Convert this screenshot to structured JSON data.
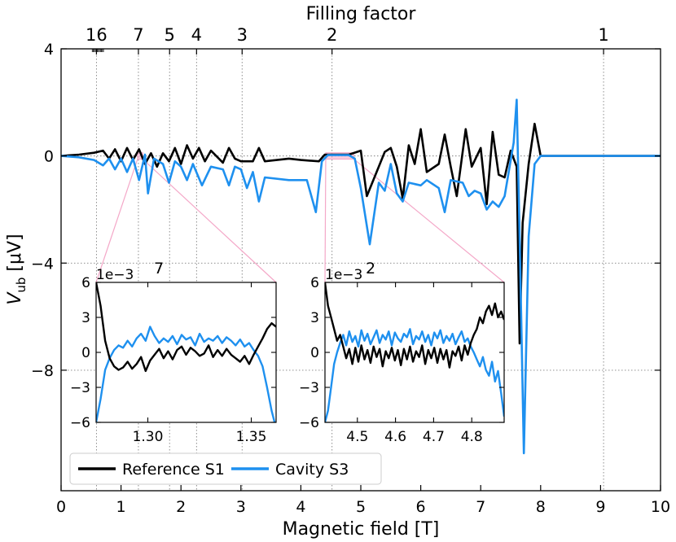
{
  "chart_data": [
    {
      "type": "line",
      "xlabel": "Magnetic field [T]",
      "ylabel": "V",
      "ylabel_sub": "ub",
      "ylabel_unit": " [μV]",
      "xlim": [
        0,
        10
      ],
      "ylim": [
        -12.5,
        4
      ],
      "xticks": [
        0,
        1,
        2,
        3,
        4,
        5,
        6,
        7,
        8,
        9,
        10
      ],
      "yticks": [
        4,
        0,
        -4,
        -8
      ],
      "ytick_labels": [
        "4",
        "0",
        "−4",
        "−8"
      ],
      "top_axis": {
        "label": "Filling factor",
        "ticks": [
          {
            "label": "16",
            "x": 0.59
          },
          {
            "label": "7",
            "x": 1.29
          },
          {
            "label": "5",
            "x": 1.81
          },
          {
            "label": "4",
            "x": 2.26
          },
          {
            "label": "3",
            "x": 3.02
          },
          {
            "label": "2",
            "x": 4.52
          },
          {
            "label": "1",
            "x": 9.05
          }
        ]
      },
      "grid": "dotted at filling-factor fields and y ticks",
      "legend": {
        "position": "lower-left"
      },
      "series": [
        {
          "name": "Reference S1",
          "color": "#000000",
          "points": [
            [
              0,
              0
            ],
            [
              0.3,
              0.05
            ],
            [
              0.55,
              0.12
            ],
            [
              0.7,
              0.2
            ],
            [
              0.8,
              -0.1
            ],
            [
              0.9,
              0.25
            ],
            [
              1.0,
              -0.2
            ],
            [
              1.1,
              0.3
            ],
            [
              1.2,
              -0.15
            ],
            [
              1.3,
              0.25
            ],
            [
              1.4,
              -0.3
            ],
            [
              1.5,
              0.1
            ],
            [
              1.6,
              -0.4
            ],
            [
              1.7,
              0.1
            ],
            [
              1.8,
              -0.2
            ],
            [
              1.9,
              0.3
            ],
            [
              2.0,
              -0.3
            ],
            [
              2.1,
              0.4
            ],
            [
              2.2,
              -0.1
            ],
            [
              2.3,
              0.3
            ],
            [
              2.4,
              -0.2
            ],
            [
              2.5,
              0.2
            ],
            [
              2.7,
              -0.25
            ],
            [
              2.8,
              0.3
            ],
            [
              2.9,
              -0.1
            ],
            [
              3.0,
              -0.2
            ],
            [
              3.2,
              -0.2
            ],
            [
              3.3,
              0.3
            ],
            [
              3.4,
              -0.2
            ],
            [
              3.6,
              -0.15
            ],
            [
              3.8,
              -0.1
            ],
            [
              4.0,
              -0.15
            ],
            [
              4.3,
              -0.2
            ],
            [
              4.4,
              0.05
            ],
            [
              4.8,
              0.05
            ],
            [
              5.0,
              0.2
            ],
            [
              5.1,
              -1.5
            ],
            [
              5.3,
              -0.4
            ],
            [
              5.4,
              0.15
            ],
            [
              5.5,
              0.3
            ],
            [
              5.6,
              -0.4
            ],
            [
              5.7,
              -1.6
            ],
            [
              5.8,
              0.4
            ],
            [
              5.9,
              -0.3
            ],
            [
              6.0,
              1.0
            ],
            [
              6.1,
              -0.6
            ],
            [
              6.3,
              -0.3
            ],
            [
              6.4,
              0.8
            ],
            [
              6.5,
              -0.4
            ],
            [
              6.6,
              -1.5
            ],
            [
              6.75,
              1.0
            ],
            [
              6.85,
              -0.4
            ],
            [
              7.0,
              0.3
            ],
            [
              7.1,
              -1.8
            ],
            [
              7.2,
              0.9
            ],
            [
              7.3,
              -0.7
            ],
            [
              7.4,
              -0.8
            ],
            [
              7.5,
              0.2
            ],
            [
              7.6,
              -0.4
            ],
            [
              7.65,
              -7.0
            ],
            [
              7.7,
              -2.5
            ],
            [
              7.8,
              -0.3
            ],
            [
              7.9,
              1.2
            ],
            [
              8.0,
              0.0
            ],
            [
              10,
              0
            ]
          ]
        },
        {
          "name": "Cavity S3",
          "color": "#1e90ef",
          "points": [
            [
              0,
              0
            ],
            [
              0.3,
              -0.05
            ],
            [
              0.55,
              -0.15
            ],
            [
              0.7,
              -0.35
            ],
            [
              0.8,
              -0.1
            ],
            [
              0.9,
              -0.5
            ],
            [
              1.0,
              -0.1
            ],
            [
              1.1,
              -0.6
            ],
            [
              1.2,
              -0.1
            ],
            [
              1.3,
              -0.9
            ],
            [
              1.4,
              0.05
            ],
            [
              1.45,
              -1.4
            ],
            [
              1.55,
              -0.1
            ],
            [
              1.7,
              -0.3
            ],
            [
              1.8,
              -1.0
            ],
            [
              1.9,
              -0.2
            ],
            [
              2.0,
              -0.4
            ],
            [
              2.1,
              -0.9
            ],
            [
              2.2,
              -0.3
            ],
            [
              2.35,
              -1.1
            ],
            [
              2.5,
              -0.4
            ],
            [
              2.7,
              -0.5
            ],
            [
              2.8,
              -1.1
            ],
            [
              2.9,
              -0.4
            ],
            [
              3.0,
              -0.5
            ],
            [
              3.1,
              -1.2
            ],
            [
              3.2,
              -0.6
            ],
            [
              3.3,
              -1.7
            ],
            [
              3.4,
              -0.8
            ],
            [
              3.8,
              -0.9
            ],
            [
              4.1,
              -0.9
            ],
            [
              4.25,
              -2.1
            ],
            [
              4.35,
              -0.2
            ],
            [
              4.45,
              0.03
            ],
            [
              4.8,
              0.03
            ],
            [
              4.9,
              -0.1
            ],
            [
              5.0,
              -1.2
            ],
            [
              5.15,
              -3.3
            ],
            [
              5.3,
              -1.0
            ],
            [
              5.4,
              -1.3
            ],
            [
              5.5,
              -0.3
            ],
            [
              5.6,
              -1.4
            ],
            [
              5.7,
              -1.7
            ],
            [
              5.8,
              -1.0
            ],
            [
              6.0,
              -1.1
            ],
            [
              6.1,
              -0.9
            ],
            [
              6.3,
              -1.2
            ],
            [
              6.4,
              -2.1
            ],
            [
              6.5,
              -0.9
            ],
            [
              6.7,
              -1.0
            ],
            [
              6.8,
              -1.5
            ],
            [
              6.9,
              -1.3
            ],
            [
              7.0,
              -1.4
            ],
            [
              7.1,
              -2.0
            ],
            [
              7.2,
              -1.7
            ],
            [
              7.3,
              -1.9
            ],
            [
              7.4,
              -1.5
            ],
            [
              7.55,
              0.5
            ],
            [
              7.6,
              2.1
            ],
            [
              7.65,
              -3.0
            ],
            [
              7.72,
              -11.1
            ],
            [
              7.8,
              -3.0
            ],
            [
              7.9,
              -0.3
            ],
            [
              8.0,
              0
            ],
            [
              10,
              0
            ]
          ]
        }
      ]
    },
    {
      "type": "line",
      "xlim": [
        1.275,
        1.362
      ],
      "ylim": [
        -6,
        6
      ],
      "xticks": [
        1.3,
        1.35
      ],
      "xtick_labels": [
        "1.30",
        "1.35"
      ],
      "yticks": [
        6,
        3,
        0,
        -3,
        -6
      ],
      "ytick_labels": [
        "6",
        "3",
        "0",
        "−3",
        "−6"
      ],
      "offset_label": "1e−3",
      "top_label": "7",
      "series": [
        {
          "name": "Reference S1",
          "color": "#000000",
          "values": [
            6,
            4,
            1,
            -0.5,
            -1.2,
            -1.5,
            -1.3,
            -0.8,
            -1.4,
            -1.0,
            -0.4,
            -1.6,
            -0.7,
            -0.2,
            0.3,
            -0.5,
            0.1,
            -0.6,
            0.2,
            0.5,
            -0.2,
            0.4,
            0.1,
            -0.3,
            -0.1,
            0.6,
            -0.4,
            0.2,
            -0.3,
            0.3,
            -0.2,
            -0.5,
            -0.8,
            -0.3,
            -1.0,
            -0.2,
            0.5,
            1.2,
            2.0,
            2.5,
            2.2
          ]
        },
        {
          "name": "Cavity S3",
          "color": "#1e90ef",
          "values": [
            -6,
            -4,
            -1.5,
            -0.5,
            0.2,
            0.6,
            0.4,
            1.0,
            0.5,
            1.2,
            1.6,
            1.0,
            2.2,
            1.4,
            0.8,
            1.2,
            0.9,
            1.4,
            0.7,
            1.5,
            1.1,
            1.3,
            0.6,
            1.6,
            0.9,
            1.2,
            1.0,
            1.4,
            0.8,
            1.3,
            1.0,
            0.6,
            1.1,
            0.5,
            0.8,
            0.2,
            -0.3,
            -1.2,
            -3.0,
            -5.0,
            -6.5
          ]
        }
      ]
    },
    {
      "type": "line",
      "xlim": [
        4.415,
        4.885
      ],
      "ylim": [
        -6,
        6
      ],
      "xticks": [
        4.5,
        4.6,
        4.7,
        4.8
      ],
      "xtick_labels": [
        "4.5",
        "4.6",
        "4.7",
        "4.8"
      ],
      "yticks": [
        6,
        3,
        0,
        -3,
        -6
      ],
      "ytick_labels": [
        "6",
        "3",
        "0",
        "−3",
        "−6"
      ],
      "offset_label": "1e−3",
      "top_label": "2",
      "series": [
        {
          "name": "Reference S1",
          "color": "#000000",
          "values": [
            6,
            4,
            3,
            2,
            1,
            1.5,
            0.5,
            -0.5,
            0.3,
            -1.0,
            0.4,
            -0.8,
            0.6,
            -0.6,
            0.2,
            -0.9,
            0.5,
            -0.4,
            0.3,
            -1.2,
            0.1,
            -0.5,
            0.4,
            -0.7,
            0.2,
            -1.1,
            0.3,
            -0.6,
            0.5,
            -0.8,
            0.1,
            -0.4,
            0.6,
            -1.0,
            0.2,
            -0.5,
            0.4,
            -0.9,
            0.3,
            -0.6,
            0.2,
            -1.3,
            0.1,
            -0.3,
            0.5,
            -0.7,
            0.6,
            -0.2,
            0.8,
            1.5,
            2.0,
            3.0,
            2.5,
            3.5,
            4.0,
            3.2,
            4.2,
            3.0,
            3.5,
            2.8
          ]
        },
        {
          "name": "Cavity S3",
          "color": "#1e90ef",
          "values": [
            -6,
            -5,
            -3,
            -1,
            0,
            0.8,
            1.5,
            0.6,
            1.8,
            0.9,
            1.4,
            0.5,
            1.9,
            1.0,
            1.6,
            0.7,
            1.3,
            1.9,
            0.8,
            1.5,
            1.1,
            1.8,
            0.6,
            1.7,
            1.2,
            0.9,
            1.6,
            1.3,
            2.0,
            0.7,
            1.4,
            1.1,
            1.8,
            0.9,
            1.5,
            0.6,
            1.7,
            1.2,
            1.9,
            0.8,
            1.4,
            1.0,
            1.6,
            0.7,
            1.3,
            1.8,
            0.9,
            1.2,
            0.5,
            0.0,
            -0.6,
            -1.2,
            -0.4,
            -1.5,
            -2.0,
            -0.8,
            -2.5,
            -1.6,
            -3.5,
            -5.5
          ]
        }
      ]
    }
  ]
}
